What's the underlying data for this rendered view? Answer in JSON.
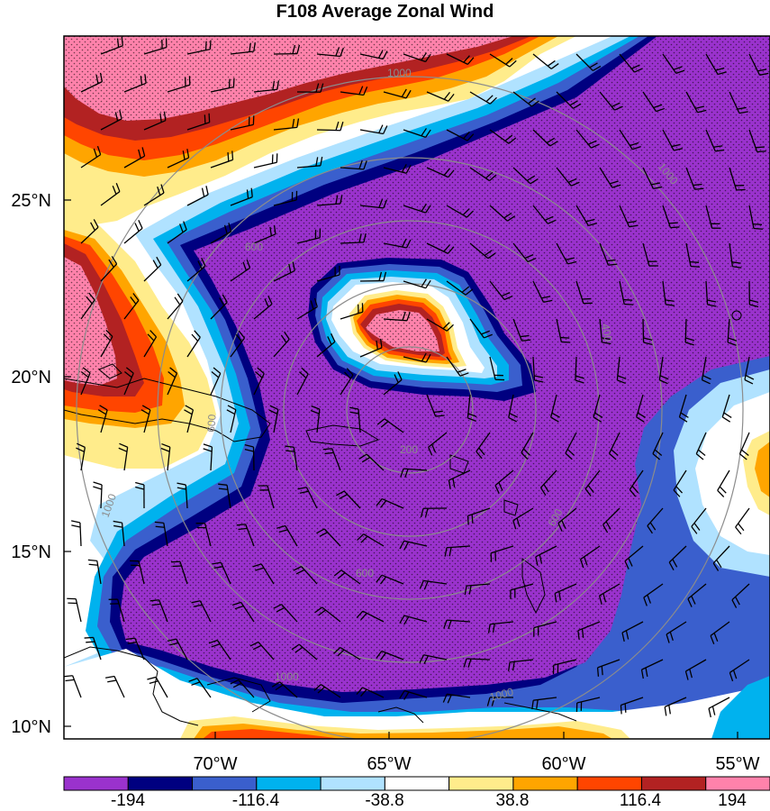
{
  "title": "F108 Average Zonal Wind",
  "map": {
    "lat_labels": [
      "25°N",
      "20°N",
      "15°N",
      "10°N"
    ],
    "lon_labels": [
      "70°W",
      "65°W",
      "60°W",
      "55°W"
    ],
    "range_ring_labels": [
      "200",
      "400",
      "600",
      "600",
      "600",
      "600",
      "1000",
      "1000",
      "1000",
      "1000",
      "1000"
    ]
  },
  "colorbar": {
    "colors": [
      "#9a32cd",
      "#000080",
      "#3a5fcd",
      "#00b2ee",
      "#b0e2ff",
      "#ffffff",
      "#ffec8b",
      "#ffa500",
      "#ff4500",
      "#b22222",
      "#ff82ab"
    ],
    "tick_labels": [
      "-194",
      "-116.4",
      "-38.8",
      "38.8",
      "116.4",
      "194"
    ]
  }
}
